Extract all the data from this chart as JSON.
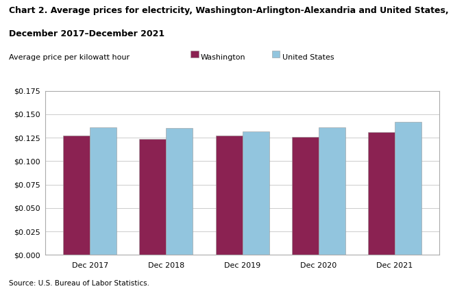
{
  "title_line1": "Chart 2. Average prices for electricity, Washington-Arlington-Alexandria and United States,",
  "title_line2": "December 2017–December 2021",
  "ylabel": "Average price per kilowatt hour",
  "source": "Source: U.S. Bureau of Labor Statistics.",
  "categories": [
    "Dec 2017",
    "Dec 2018",
    "Dec 2019",
    "Dec 2020",
    "Dec 2021"
  ],
  "washington_values": [
    0.127,
    0.124,
    0.127,
    0.126,
    0.131
  ],
  "us_values": [
    0.136,
    0.135,
    0.132,
    0.136,
    0.142
  ],
  "washington_color": "#8B2252",
  "us_color": "#92C5DE",
  "bar_edge_color": "#999999",
  "ylim": [
    0,
    0.175
  ],
  "yticks": [
    0.0,
    0.025,
    0.05,
    0.075,
    0.1,
    0.125,
    0.15,
    0.175
  ],
  "legend_labels": [
    "Washington",
    "United States"
  ],
  "background_color": "#ffffff",
  "grid_color": "#cccccc",
  "title_fontsize": 9,
  "axis_fontsize": 8,
  "tick_fontsize": 8,
  "legend_fontsize": 8,
  "source_fontsize": 7.5,
  "bar_width": 0.35
}
